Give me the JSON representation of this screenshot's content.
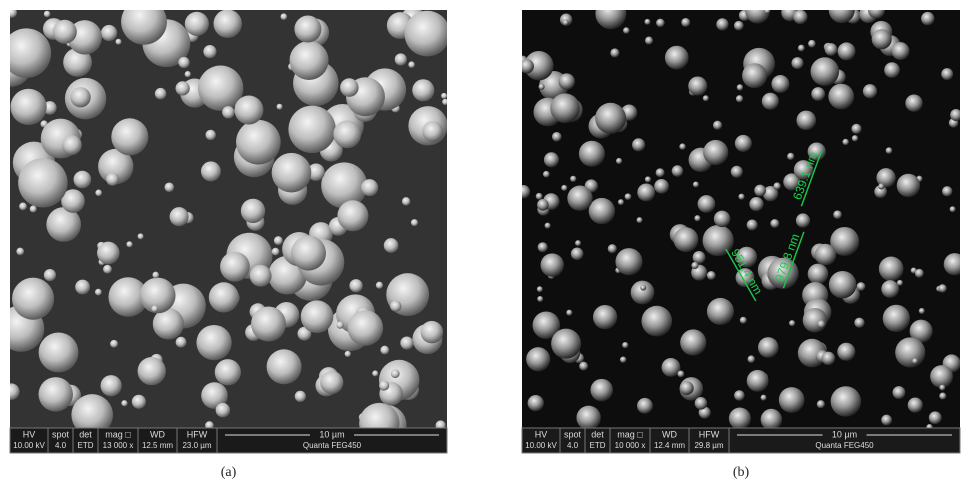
{
  "panels": [
    {
      "caption": "(a)",
      "info": {
        "labels": [
          "HV",
          "spot",
          "det",
          "mag □",
          "WD",
          "HFW"
        ],
        "values": [
          "10.00 kV",
          "4.0",
          "ETD",
          "13 000 x",
          "12.5 mm",
          "23.0 µm"
        ],
        "scale": "10 µm",
        "instrument": "Quanta FEG450"
      }
    },
    {
      "caption": "(b)",
      "info": {
        "labels": [
          "HV",
          "spot",
          "det",
          "mag □",
          "WD",
          "HFW"
        ],
        "values": [
          "10.00 kV",
          "4.0",
          "ETD",
          "10 000 x",
          "12.4 mm",
          "29.8 µm"
        ],
        "scale": "10 µm",
        "instrument": "Quanta FEG450"
      },
      "annotations": [
        "639.1 nm",
        "979.8 nm",
        "951.4 nm"
      ]
    }
  ]
}
